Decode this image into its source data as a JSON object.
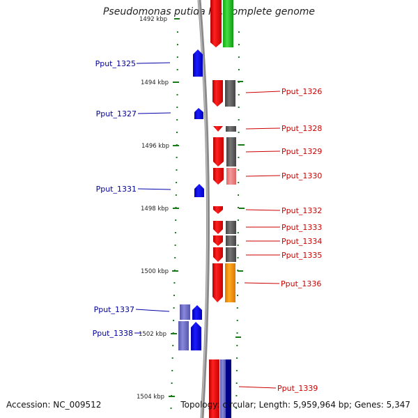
{
  "title": "Pseudomonas putida F1, complete genome",
  "footer": {
    "accession": "Accession: NC_009512",
    "summary": "Topology: circular; Length: 5,959,964 bp; Genes: 5,347"
  },
  "colors": {
    "forward_gene": "#ff0000",
    "reverse_gene": "#0000ff",
    "forward_label": "#cc0000",
    "reverse_label": "#000099",
    "backbone": "#888888",
    "tick": "#1a7a1a"
  },
  "ticks": [
    {
      "label": "1492 kbp",
      "kbp": 1492
    },
    {
      "label": "1494 kbp",
      "kbp": 1494
    },
    {
      "label": "1496 kbp",
      "kbp": 1496
    },
    {
      "label": "1498 kbp",
      "kbp": 1498
    },
    {
      "label": "1500 kbp",
      "kbp": 1500
    },
    {
      "label": "1502 kbp",
      "kbp": 1502
    },
    {
      "label": "1504 kbp",
      "kbp": 1504
    }
  ],
  "labels": [
    {
      "text": "Pput_1325",
      "strand": "reverse"
    },
    {
      "text": "Pput_1327",
      "strand": "reverse"
    },
    {
      "text": "Pput_1331",
      "strand": "reverse"
    },
    {
      "text": "Pput_1337",
      "strand": "reverse"
    },
    {
      "text": "Pput_1338",
      "strand": "reverse"
    },
    {
      "text": "Pput_1326",
      "strand": "forward"
    },
    {
      "text": "Pput_1328",
      "strand": "forward"
    },
    {
      "text": "Pput_1329",
      "strand": "forward"
    },
    {
      "text": "Pput_1330",
      "strand": "forward"
    },
    {
      "text": "Pput_1332",
      "strand": "forward"
    },
    {
      "text": "Pput_1333",
      "strand": "forward"
    },
    {
      "text": "Pput_1334",
      "strand": "forward"
    },
    {
      "text": "Pput_1335",
      "strand": "forward"
    },
    {
      "text": "Pput_1336",
      "strand": "forward"
    },
    {
      "text": "Pput_1339",
      "strand": "forward"
    }
  ]
}
